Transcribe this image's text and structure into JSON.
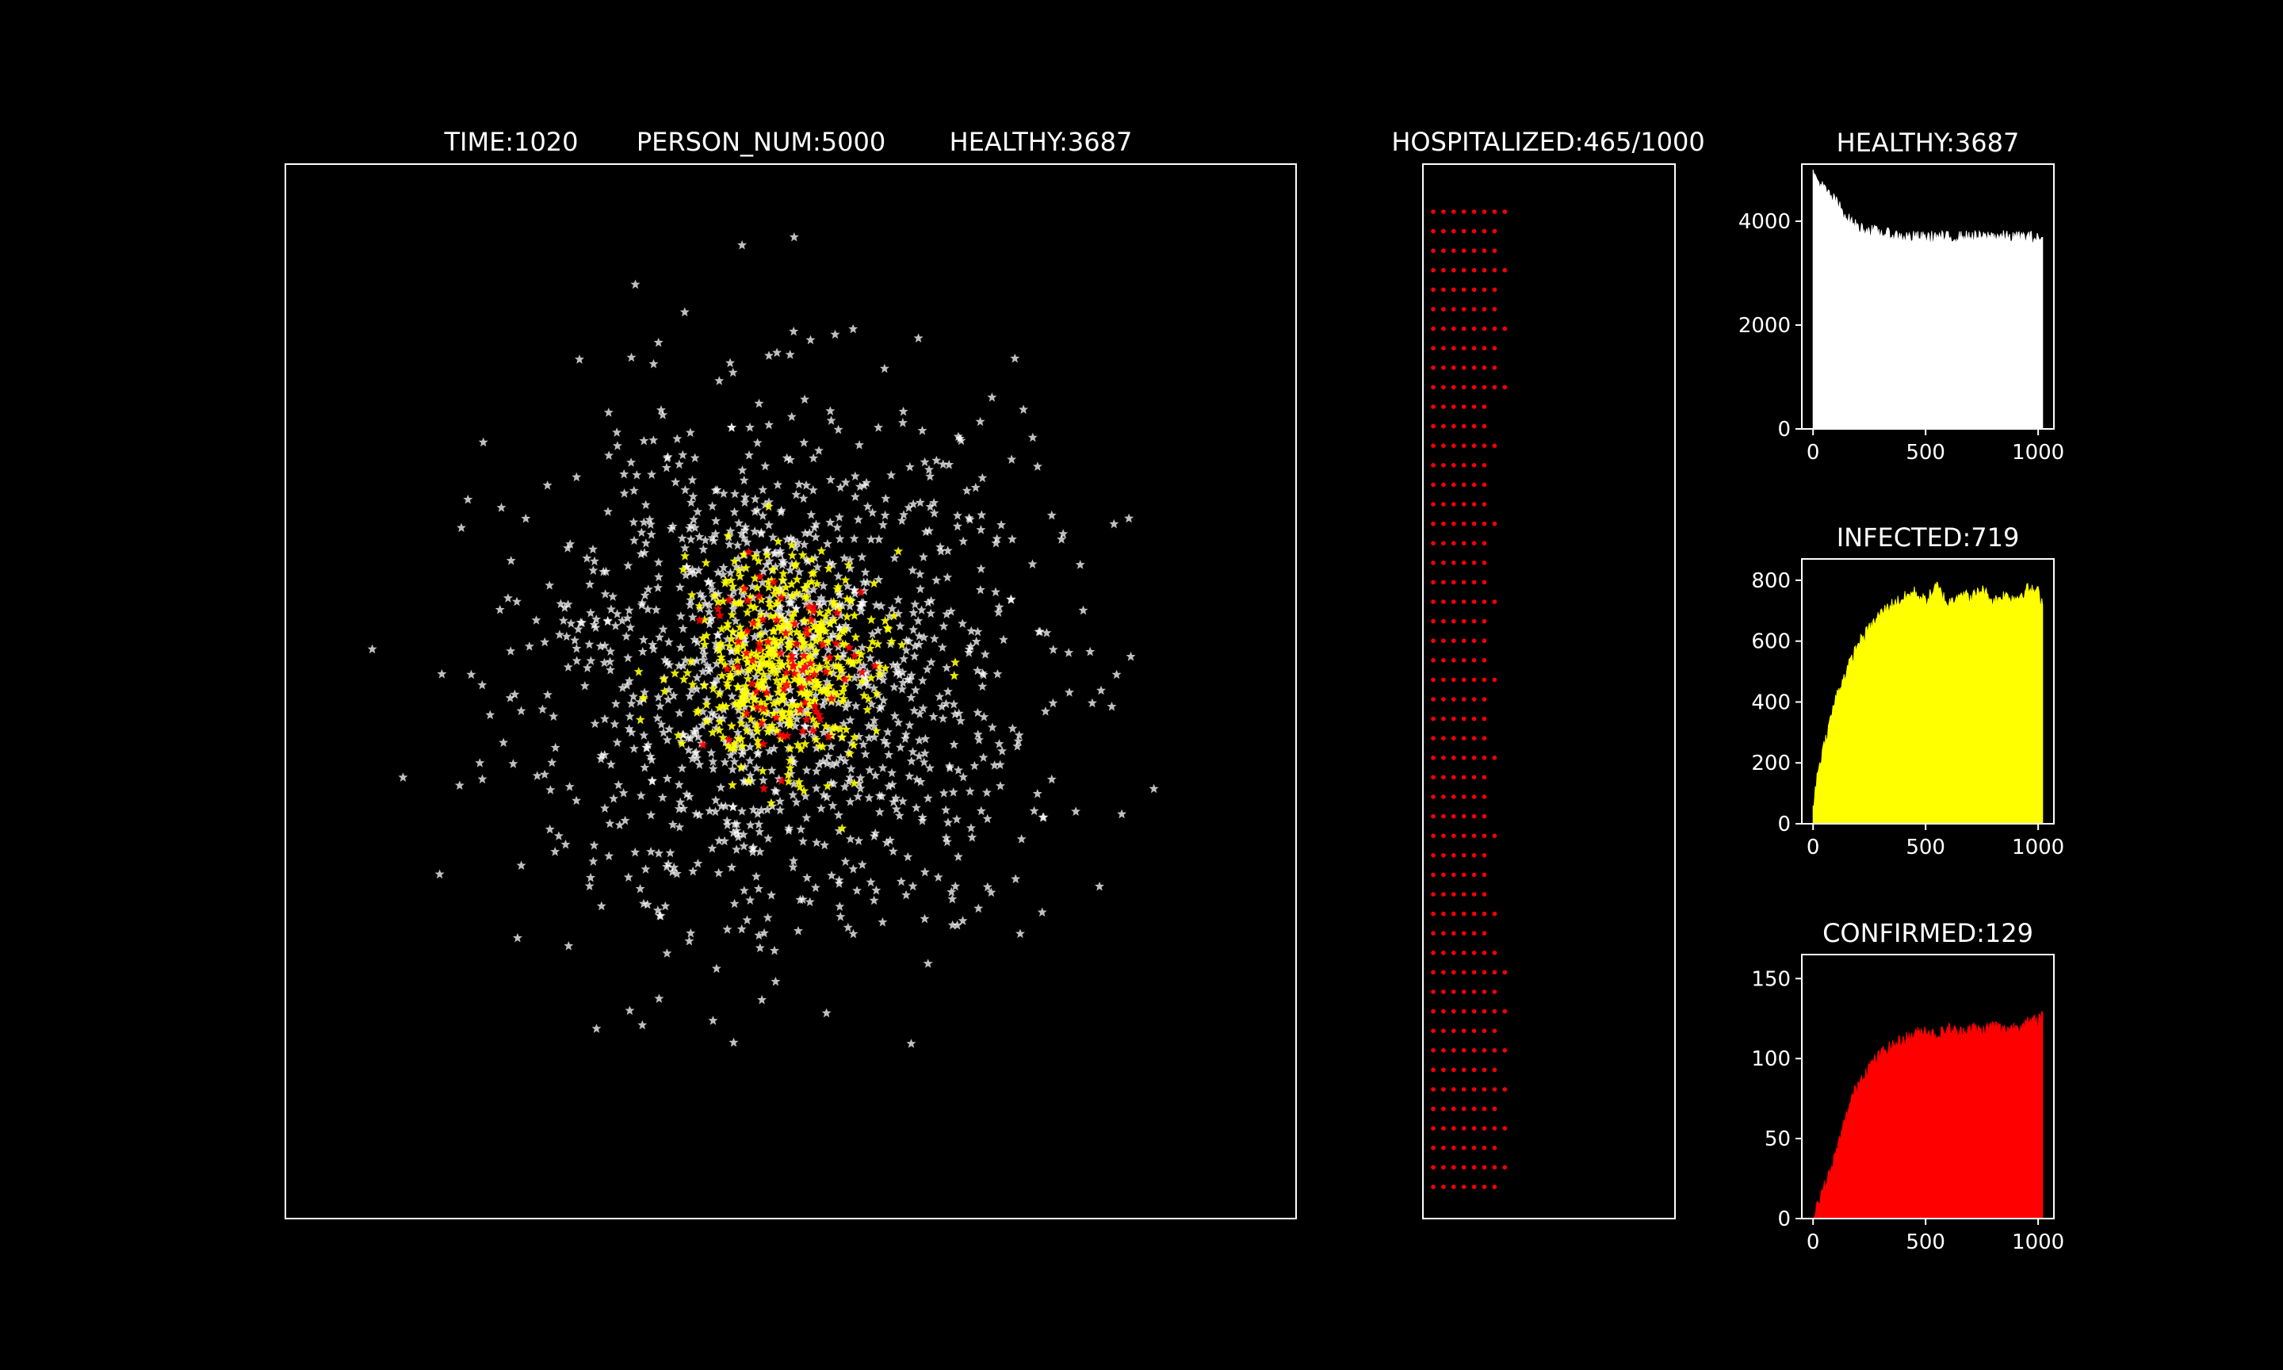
{
  "header": {
    "time": "TIME:1020",
    "person_num": "PERSON_NUM:5000",
    "healthy": "HEALTHY:3687",
    "hospitalized": "HOSPITALIZED:465/1000"
  },
  "colors": {
    "background": "#000000",
    "healthy": "#ffffff",
    "infected": "#ffff00",
    "confirmed": "#ff0000"
  },
  "chart_data": [
    {
      "type": "scatter",
      "title": "TIME:1020       PERSON_NUM:5000       HEALTHY:3687",
      "marker": "star",
      "series": [
        {
          "color": "#ffffff",
          "count": 3687
        },
        {
          "color": "#ffff00",
          "count": 719
        },
        {
          "color": "#ff0000",
          "count": 129
        }
      ],
      "axes": "none"
    },
    {
      "type": "scatter",
      "title": "HOSPITALIZED:465/1000",
      "marker": "dot",
      "color": "#ff0000",
      "occupied": 465,
      "capacity": 1000,
      "axes": "none"
    },
    {
      "type": "area",
      "title": "HEALTHY:3687",
      "color": "#ffffff",
      "xlim": [
        -50,
        1070
      ],
      "ylim": [
        0,
        5100
      ],
      "xticks": [
        0,
        500,
        1000
      ],
      "yticks": [
        0,
        2000,
        4000
      ],
      "x": [
        0,
        10,
        30,
        60,
        100,
        130,
        160,
        200,
        250,
        300,
        350,
        400,
        450,
        500,
        550,
        600,
        650,
        700,
        750,
        800,
        850,
        900,
        950,
        1000,
        1020
      ],
      "values": [
        4900,
        4850,
        4720,
        4560,
        4380,
        4200,
        4020,
        3880,
        3820,
        3770,
        3730,
        3700,
        3690,
        3680,
        3700,
        3680,
        3690,
        3700,
        3680,
        3720,
        3700,
        3680,
        3700,
        3660,
        3687
      ]
    },
    {
      "type": "area",
      "title": "INFECTED:719",
      "color": "#ffff00",
      "xlim": [
        -50,
        1070
      ],
      "ylim": [
        0,
        870
      ],
      "xticks": [
        0,
        500,
        1000
      ],
      "yticks": [
        0,
        200,
        400,
        600,
        800
      ],
      "x": [
        0,
        10,
        30,
        60,
        80,
        100,
        130,
        160,
        200,
        250,
        300,
        350,
        400,
        450,
        500,
        550,
        600,
        650,
        700,
        750,
        800,
        850,
        900,
        950,
        1000,
        1020
      ],
      "values": [
        40,
        120,
        200,
        290,
        350,
        410,
        470,
        520,
        590,
        640,
        690,
        720,
        740,
        760,
        730,
        780,
        720,
        760,
        740,
        770,
        730,
        750,
        740,
        770,
        760,
        719
      ]
    },
    {
      "type": "area",
      "title": "CONFIRMED:129",
      "color": "#ff0000",
      "xlim": [
        -50,
        1070
      ],
      "ylim": [
        0,
        165
      ],
      "xticks": [
        0,
        500,
        1000
      ],
      "yticks": [
        0,
        50,
        100,
        150
      ],
      "x": [
        0,
        20,
        50,
        80,
        100,
        130,
        160,
        200,
        250,
        300,
        350,
        400,
        450,
        500,
        550,
        600,
        650,
        700,
        750,
        800,
        850,
        900,
        950,
        1000,
        1020
      ],
      "values": [
        0,
        10,
        20,
        30,
        40,
        55,
        70,
        85,
        95,
        103,
        108,
        112,
        115,
        118,
        114,
        119,
        116,
        120,
        117,
        121,
        118,
        120,
        122,
        124,
        129
      ]
    }
  ]
}
